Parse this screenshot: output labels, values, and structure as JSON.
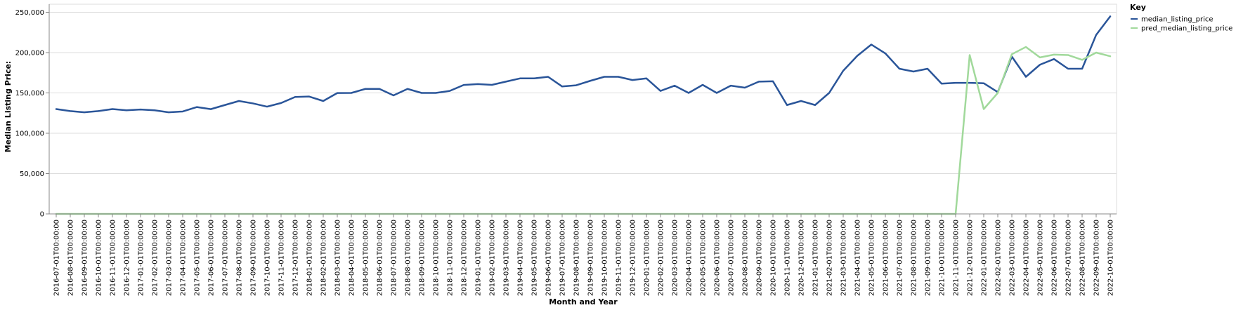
{
  "chart_data": {
    "type": "line",
    "xlabel": "Month and Year",
    "ylabel": "Median Listing Price:",
    "ylim": [
      0,
      260000
    ],
    "y_ticks": [
      0,
      50000,
      100000,
      150000,
      200000,
      250000
    ],
    "y_tick_labels": [
      "0",
      "50,000",
      "100,000",
      "150,000",
      "200,000",
      "250,000"
    ],
    "grid": true,
    "legend": {
      "title": "Key",
      "position": "top-right"
    },
    "x": [
      "2016-07-01T00:00:00",
      "2016-08-01T00:00:00",
      "2016-09-01T00:00:00",
      "2016-10-01T00:00:00",
      "2016-11-01T00:00:00",
      "2016-12-01T00:00:00",
      "2017-01-01T00:00:00",
      "2017-02-01T00:00:00",
      "2017-03-01T00:00:00",
      "2017-04-01T00:00:00",
      "2017-05-01T00:00:00",
      "2017-06-01T00:00:00",
      "2017-07-01T00:00:00",
      "2017-08-01T00:00:00",
      "2017-09-01T00:00:00",
      "2017-10-01T00:00:00",
      "2017-11-01T00:00:00",
      "2017-12-01T00:00:00",
      "2018-01-01T00:00:00",
      "2018-02-01T00:00:00",
      "2018-03-01T00:00:00",
      "2018-04-01T00:00:00",
      "2018-05-01T00:00:00",
      "2018-06-01T00:00:00",
      "2018-07-01T00:00:00",
      "2018-08-01T00:00:00",
      "2018-09-01T00:00:00",
      "2018-10-01T00:00:00",
      "2018-11-01T00:00:00",
      "2018-12-01T00:00:00",
      "2019-01-01T00:00:00",
      "2019-02-01T00:00:00",
      "2019-03-01T00:00:00",
      "2019-04-01T00:00:00",
      "2019-05-01T00:00:00",
      "2019-06-01T00:00:00",
      "2019-07-01T00:00:00",
      "2019-08-01T00:00:00",
      "2019-09-01T00:00:00",
      "2019-10-01T00:00:00",
      "2019-11-01T00:00:00",
      "2019-12-01T00:00:00",
      "2020-01-01T00:00:00",
      "2020-02-01T00:00:00",
      "2020-03-01T00:00:00",
      "2020-04-01T00:00:00",
      "2020-05-01T00:00:00",
      "2020-06-01T00:00:00",
      "2020-07-01T00:00:00",
      "2020-08-01T00:00:00",
      "2020-09-01T00:00:00",
      "2020-10-01T00:00:00",
      "2020-11-01T00:00:00",
      "2020-12-01T00:00:00",
      "2021-01-01T00:00:00",
      "2021-02-01T00:00:00",
      "2021-03-01T00:00:00",
      "2021-04-01T00:00:00",
      "2021-05-01T00:00:00",
      "2021-06-01T00:00:00",
      "2021-07-01T00:00:00",
      "2021-08-01T00:00:00",
      "2021-09-01T00:00:00",
      "2021-10-01T00:00:00",
      "2021-11-01T00:00:00",
      "2021-12-01T00:00:00",
      "2022-01-01T00:00:00",
      "2022-02-01T00:00:00",
      "2022-03-01T00:00:00",
      "2022-04-01T00:00:00",
      "2022-05-01T00:00:00",
      "2022-06-01T00:00:00",
      "2022-07-01T00:00:00",
      "2022-08-01T00:00:00",
      "2022-09-01T00:00:00",
      "2022-10-01T00:00:00"
    ],
    "series": [
      {
        "name": "median_listing_price",
        "color": "#2a5599",
        "values": [
          130000,
          127500,
          126000,
          127500,
          130000,
          128500,
          129500,
          128500,
          126000,
          127000,
          132500,
          129900,
          135000,
          140000,
          137000,
          133000,
          137500,
          145000,
          145500,
          140000,
          149900,
          150000,
          155000,
          155000,
          147000,
          155000,
          150000,
          150000,
          152500,
          159900,
          161000,
          160000,
          164000,
          168000,
          168000,
          170000,
          158000,
          159500,
          165000,
          170000,
          170000,
          166000,
          168000,
          152500,
          159000,
          150000,
          160000,
          150000,
          159000,
          156500,
          164000,
          164500,
          135000,
          140000,
          135000,
          150000,
          177500,
          196000,
          210000,
          199000,
          180000,
          176500,
          180000,
          161500,
          162500,
          162500,
          162000,
          151000,
          195000,
          170000,
          185000,
          192000,
          180000,
          180000,
          222000,
          244900
        ]
      },
      {
        "name": "pred_median_listing_price",
        "color": "#a1d99b",
        "values": [
          0,
          0,
          0,
          0,
          0,
          0,
          0,
          0,
          0,
          0,
          0,
          0,
          0,
          0,
          0,
          0,
          0,
          0,
          0,
          0,
          0,
          0,
          0,
          0,
          0,
          0,
          0,
          0,
          0,
          0,
          0,
          0,
          0,
          0,
          0,
          0,
          0,
          0,
          0,
          0,
          0,
          0,
          0,
          0,
          0,
          0,
          0,
          0,
          0,
          0,
          0,
          0,
          0,
          0,
          0,
          0,
          0,
          0,
          0,
          0,
          0,
          0,
          0,
          0,
          0,
          197000,
          130000,
          150000,
          198000,
          207000,
          194000,
          197500,
          197000,
          191000,
          200000,
          195500
        ]
      }
    ]
  }
}
